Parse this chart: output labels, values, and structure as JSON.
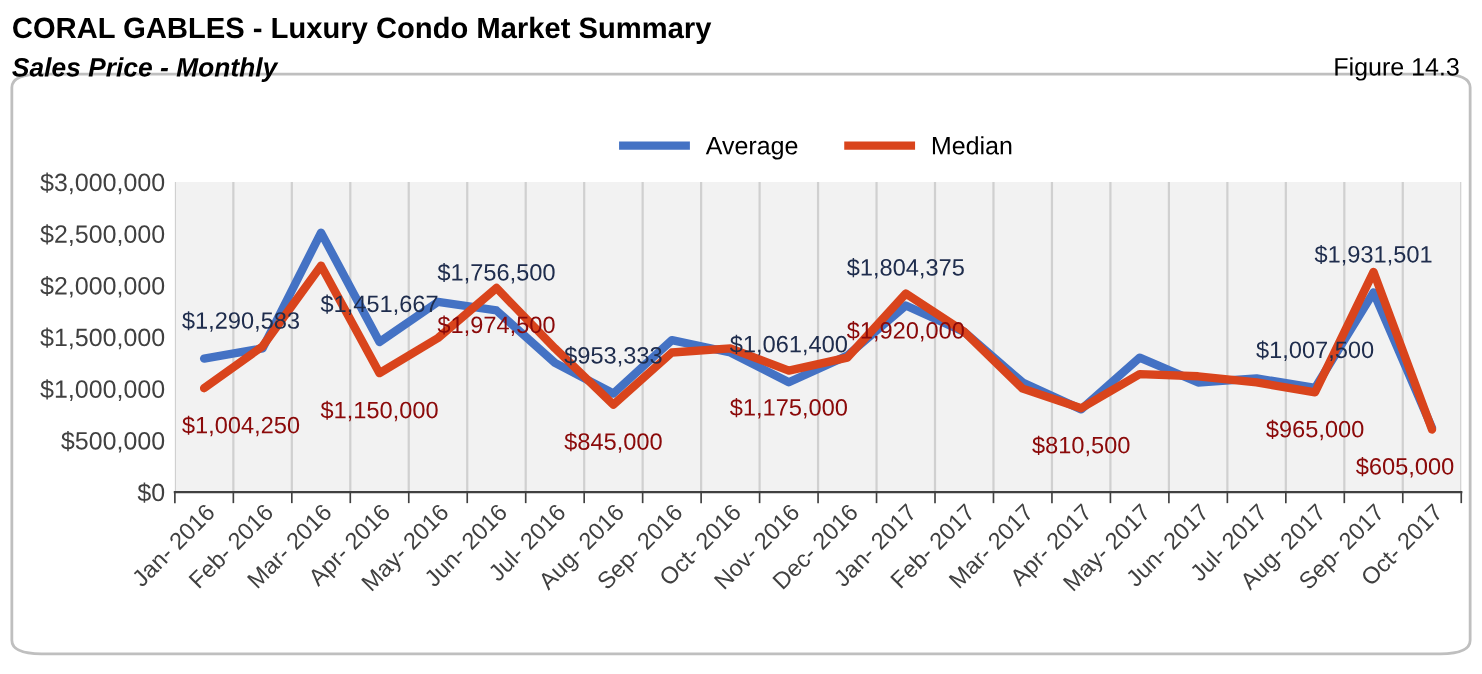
{
  "chart_data": {
    "type": "line",
    "title": "CORAL GABLES - Luxury Condo Market Summary",
    "subtitle": "Sales Price - Monthly",
    "annotations": [
      "Figure 14.3"
    ],
    "categories": [
      "Jan- 2016",
      "Feb- 2016",
      "Mar- 2016",
      "Apr- 2016",
      "May- 2016",
      "Jun- 2016",
      "Jul- 2016",
      "Aug- 2016",
      "Sep- 2016",
      "Oct- 2016",
      "Nov- 2016",
      "Dec- 2016",
      "Jan- 2017",
      "Feb- 2017",
      "Mar- 2017",
      "Apr- 2017",
      "May- 2017",
      "Jun- 2017",
      "Jul- 2017",
      "Aug- 2017",
      "Sep- 2017",
      "Oct- 2017"
    ],
    "series": [
      {
        "name": "Average",
        "color": "#4472c4",
        "values": [
          1290583,
          1390000,
          2510000,
          1451667,
          1840000,
          1756500,
          1250000,
          953333,
          1470000,
          1350000,
          1061400,
          1320000,
          1804375,
          1550000,
          1060000,
          800000,
          1300000,
          1060000,
          1100000,
          1007500,
          1931501,
          620000
        ],
        "value_labels": [
          "$1,290,583",
          null,
          null,
          "$1,451,667",
          null,
          "$1,756,500",
          null,
          "$953,333",
          null,
          null,
          "$1,061,400",
          null,
          "$1,804,375",
          null,
          null,
          null,
          null,
          null,
          null,
          "$1,007,500",
          "$1,931,501",
          null
        ]
      },
      {
        "name": "Median",
        "color": "#d9441c",
        "values": [
          1004250,
          1410000,
          2190000,
          1150000,
          1490000,
          1974500,
          1390000,
          845000,
          1350000,
          1390000,
          1175000,
          1300000,
          1920000,
          1550000,
          1000000,
          810500,
          1140000,
          1120000,
          1060000,
          965000,
          2130000,
          605000
        ],
        "value_labels": [
          "$1,004,250",
          null,
          null,
          "$1,150,000",
          null,
          "$1,974,500",
          null,
          "$845,000",
          null,
          null,
          "$1,175,000",
          null,
          "$1,920,000",
          null,
          null,
          "$810,500",
          null,
          null,
          null,
          "$965,000",
          null,
          "$605,000"
        ]
      }
    ],
    "ylim": [
      0,
      3000000
    ],
    "yticks": [
      {
        "value": 0,
        "label": "$0"
      },
      {
        "value": 500000,
        "label": "$500,000"
      },
      {
        "value": 1000000,
        "label": "$1,000,000"
      },
      {
        "value": 1500000,
        "label": "$1,500,000"
      },
      {
        "value": 2000000,
        "label": "$2,000,000"
      },
      {
        "value": 2500000,
        "label": "$2,500,000"
      },
      {
        "value": 3000000,
        "label": "$3,000,000"
      }
    ],
    "grid": "x",
    "legend": "top",
    "marker": "none",
    "line_style": "solid"
  }
}
